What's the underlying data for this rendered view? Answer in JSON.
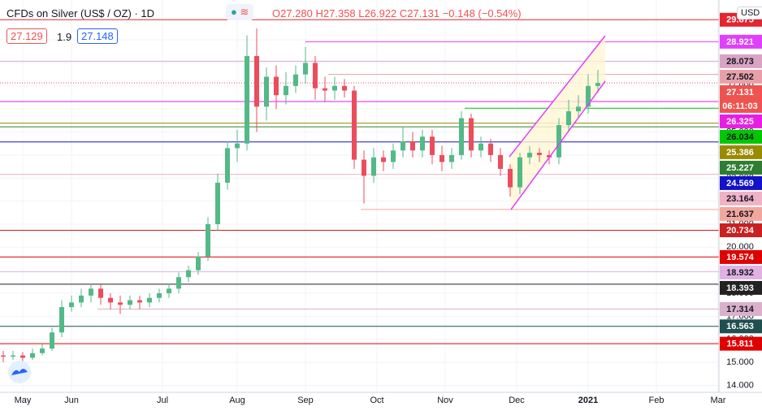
{
  "header": {
    "symbol": "CFDs on Silver (US$ / OZ)",
    "interval": "1D",
    "open": "O27.280",
    "high": "H27.358",
    "low": "L26.922",
    "close": "C27.131",
    "change": "−0.148 (−0.54%)",
    "bid": "27.129",
    "spread": "1.9",
    "ask": "27.148",
    "currency": "USD"
  },
  "chart_data": {
    "type": "candlestick",
    "x": [
      0,
      3,
      6,
      9,
      12,
      15,
      18,
      21,
      24,
      27,
      30,
      33,
      36,
      39,
      42,
      45,
      48,
      51,
      54,
      57,
      60,
      63,
      66,
      69,
      72,
      75,
      78,
      81,
      84,
      87,
      90,
      93,
      96,
      99,
      102,
      105,
      108,
      111,
      114,
      117,
      120,
      123,
      126,
      129,
      132,
      135,
      138,
      141,
      144,
      147,
      150,
      153,
      156,
      159,
      162,
      165,
      168,
      171,
      174,
      177,
      180,
      183
    ],
    "open": [
      15.3,
      15.25,
      15.3,
      15.2,
      15.4,
      15.6,
      16.3,
      17.4,
      17.6,
      17.9,
      18.2,
      17.8,
      17.6,
      17.5,
      17.7,
      17.6,
      17.8,
      18.0,
      18.2,
      18.7,
      19.0,
      19.6,
      21.0,
      22.8,
      24.3,
      24.5,
      28.3,
      26.1,
      27.4,
      26.6,
      27.0,
      27.5,
      28.0,
      26.9,
      26.8,
      27.0,
      26.8,
      23.8,
      23.1,
      23.9,
      23.7,
      24.2,
      24.6,
      24.2,
      24.8,
      24.0,
      23.7,
      24.0,
      25.6,
      24.2,
      24.5,
      24.0,
      23.4,
      22.6,
      23.9,
      24.1,
      24.0,
      23.9,
      25.3,
      25.9,
      26.1,
      27.0
    ],
    "high": [
      15.5,
      15.5,
      15.45,
      15.6,
      15.8,
      16.5,
      17.7,
      17.9,
      18.2,
      18.4,
      18.4,
      18.0,
      17.9,
      17.9,
      17.9,
      18.0,
      18.2,
      18.4,
      18.9,
      19.2,
      19.8,
      21.3,
      23.2,
      24.6,
      25.1,
      29.2,
      29.5,
      27.8,
      27.9,
      27.6,
      27.9,
      28.7,
      28.3,
      27.4,
      27.4,
      27.3,
      27.0,
      24.2,
      24.3,
      24.2,
      24.5,
      25.2,
      25.0,
      25.1,
      25.1,
      24.4,
      24.3,
      25.9,
      25.8,
      24.8,
      24.7,
      24.3,
      23.6,
      24.1,
      24.4,
      24.3,
      24.2,
      25.6,
      26.4,
      26.6,
      27.5,
      27.7
    ],
    "low": [
      15.0,
      15.1,
      15.0,
      15.1,
      15.3,
      15.5,
      16.1,
      17.2,
      17.4,
      17.6,
      17.5,
      17.3,
      17.1,
      17.3,
      17.3,
      17.4,
      17.6,
      17.8,
      18.0,
      18.5,
      18.8,
      19.4,
      20.7,
      22.5,
      23.7,
      24.2,
      25.0,
      25.5,
      26.0,
      26.2,
      26.7,
      27.1,
      26.4,
      26.3,
      26.4,
      26.5,
      23.4,
      21.9,
      22.8,
      23.3,
      23.4,
      23.9,
      23.9,
      23.9,
      23.6,
      23.3,
      23.4,
      23.8,
      23.9,
      23.9,
      23.7,
      23.1,
      22.2,
      22.3,
      23.6,
      23.7,
      23.6,
      23.6,
      25.0,
      25.6,
      25.8,
      26.7
    ],
    "close": [
      15.25,
      15.3,
      15.2,
      15.4,
      15.6,
      16.3,
      17.4,
      17.6,
      17.9,
      18.2,
      17.8,
      17.6,
      17.5,
      17.7,
      17.6,
      17.8,
      18.0,
      18.2,
      18.7,
      19.0,
      19.6,
      21.0,
      22.8,
      24.3,
      24.5,
      28.3,
      26.1,
      27.4,
      26.6,
      27.0,
      27.5,
      28.0,
      26.9,
      26.8,
      27.0,
      26.8,
      23.8,
      23.1,
      23.9,
      23.7,
      24.2,
      24.6,
      24.2,
      24.8,
      24.0,
      23.7,
      24.0,
      25.6,
      24.2,
      24.5,
      24.0,
      23.4,
      22.6,
      23.9,
      24.1,
      24.0,
      23.9,
      25.3,
      25.9,
      26.1,
      27.0,
      27.131
    ],
    "up_color": "#53b987",
    "down_color": "#eb4d5c",
    "xlim": [
      -1,
      220.25
    ],
    "xticks": [
      {
        "value": 6,
        "label": "May"
      },
      {
        "value": 21,
        "label": "Jun"
      },
      {
        "value": 49,
        "label": "Jul"
      },
      {
        "value": 72,
        "label": "Aug"
      },
      {
        "value": 93,
        "label": "Sep"
      },
      {
        "value": 115,
        "label": "Oct"
      },
      {
        "value": 136,
        "label": "Nov"
      },
      {
        "value": 158,
        "label": "Dec"
      },
      {
        "value": 180,
        "label": "2021"
      },
      {
        "value": 201,
        "label": "Feb"
      },
      {
        "value": 220,
        "label": "Mar"
      }
    ],
    "ylim": [
      13.7,
      30.45
    ],
    "yticks": [
      {
        "value": 14,
        "label": "14.000"
      },
      {
        "value": 15,
        "label": "15.000"
      },
      {
        "value": 16,
        "label": "16.000"
      },
      {
        "value": 17,
        "label": "17.000"
      },
      {
        "value": 18,
        "label": "18.000"
      },
      {
        "value": 19,
        "label": "19.000"
      },
      {
        "value": 20,
        "label": "20.000"
      },
      {
        "value": 21,
        "label": "21.000"
      },
      {
        "value": 22,
        "label": "22.000"
      },
      {
        "value": 23,
        "label": "23.000"
      },
      {
        "value": 24,
        "label": "24.000"
      },
      {
        "value": 25,
        "label": "25.000"
      },
      {
        "value": 26,
        "label": "26.000"
      },
      {
        "value": 27,
        "label": "27.000"
      },
      {
        "value": 28,
        "label": "28.000"
      },
      {
        "value": 29,
        "label": "29.000"
      }
    ],
    "grid": true,
    "levels": [
      {
        "value": 29.875,
        "color": "#e3262f",
        "text_color": "#fff"
      },
      {
        "value": 28.921,
        "color": "#e040fb",
        "text_color": "#fff",
        "start": 93
      },
      {
        "value": 28.073,
        "color": "#d9a3c4",
        "text_color": "#131722"
      },
      {
        "value": 27.502,
        "color": "#e8a0a8",
        "text_color": "#131722",
        "start": 100
      },
      {
        "value": 27.131,
        "color": "#ef5350",
        "text_color": "#fff",
        "dashed": true,
        "countdown": "06:11:03"
      },
      {
        "value": 26.325,
        "color": "#e91ee3",
        "text_color": "#fff"
      },
      {
        "value": 26.034,
        "color": "#00c800",
        "text_color": "#131722",
        "start": 142
      },
      {
        "value": 25.386,
        "color": "#9a8a00",
        "text_color": "#fff"
      },
      {
        "value": 25.227,
        "color": "#2e7d32",
        "text_color": "#fff"
      },
      {
        "value": 24.569,
        "color": "#1212c8",
        "text_color": "#fff"
      },
      {
        "value": 23.164,
        "color": "#f0b2c6",
        "text_color": "#131722"
      },
      {
        "value": 21.637,
        "color": "#f2a79e",
        "text_color": "#131722",
        "start": 110
      },
      {
        "value": 20.734,
        "color": "#cc1f1f",
        "text_color": "#fff"
      },
      {
        "value": 19.574,
        "color": "#e00000",
        "text_color": "#fff"
      },
      {
        "value": 18.932,
        "color": "#e2b1e4",
        "text_color": "#131722"
      },
      {
        "value": 18.393,
        "color": "#222222",
        "text_color": "#fff"
      },
      {
        "value": 17.314,
        "color": "#dbb0cc",
        "text_color": "#131722",
        "start": 29
      },
      {
        "value": 16.563,
        "color": "#1f4f4f",
        "text_color": "#fff"
      },
      {
        "value": 15.811,
        "color": "#e00000",
        "text_color": "#fff"
      }
    ]
  }
}
